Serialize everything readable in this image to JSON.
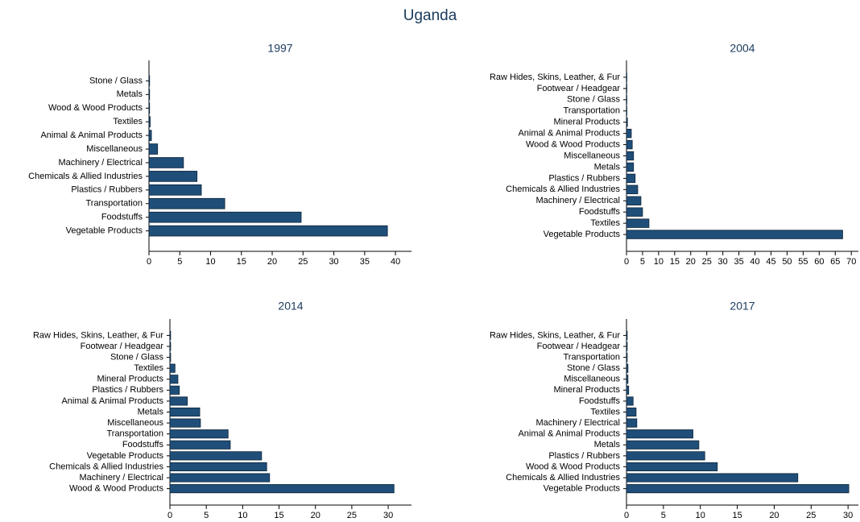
{
  "title": "Uganda",
  "chart_data": [
    {
      "type": "barh",
      "title": "1997",
      "color": "#1f4e79",
      "categories": [
        "Stone / Glass",
        "Metals",
        "Wood & Wood Products",
        "Textiles",
        "Animal & Animal Products",
        "Miscellaneous",
        "Machinery / Electrical",
        "Chemicals & Allied Industries",
        "Plastics / Rubbers",
        "Transportation",
        "Foodstuffs",
        "Vegetable Products"
      ],
      "values": [
        0.1,
        0.1,
        0.1,
        0.2,
        0.4,
        1.4,
        5.6,
        7.8,
        8.5,
        12.3,
        24.7,
        38.7
      ],
      "xlim": [
        0,
        42.6
      ],
      "xticks": [
        0,
        5,
        10,
        15,
        20,
        25,
        30,
        35,
        40
      ]
    },
    {
      "type": "barh",
      "title": "2004",
      "color": "#1f4e79",
      "categories": [
        "Raw Hides, Skins, Leather, & Fur",
        "Footwear / Headgear",
        "Stone / Glass",
        "Transportation",
        "Mineral Products",
        "Animal & Animal Products",
        "Wood & Wood Products",
        "Miscellaneous",
        "Metals",
        "Plastics / Rubbers",
        "Chemicals & Allied Industries",
        "Machinery / Electrical",
        "Foodstuffs",
        "Textiles",
        "Vegetable Products"
      ],
      "values": [
        0.1,
        0.1,
        0.1,
        0.1,
        0.3,
        1.5,
        1.8,
        2.2,
        2.2,
        2.7,
        3.5,
        4.5,
        5.0,
        7.0,
        67.3
      ],
      "xlim": [
        0,
        72.2
      ],
      "xticks": [
        0,
        5,
        10,
        15,
        20,
        25,
        30,
        35,
        40,
        45,
        50,
        55,
        60,
        65,
        70
      ]
    },
    {
      "type": "barh",
      "title": "2014",
      "color": "#1f4e79",
      "categories": [
        "Raw Hides, Skins, Leather, & Fur",
        "Footwear / Headgear",
        "Stone / Glass",
        "Textiles",
        "Mineral Products",
        "Plastics / Rubbers",
        "Animal & Animal Products",
        "Metals",
        "Miscellaneous",
        "Transportation",
        "Foodstuffs",
        "Vegetable Products",
        "Chemicals & Allied Industries",
        "Machinery / Electrical",
        "Wood & Wood Products"
      ],
      "values": [
        0.1,
        0.1,
        0.1,
        0.7,
        1.1,
        1.3,
        2.4,
        4.1,
        4.2,
        8.0,
        8.3,
        12.6,
        13.3,
        13.7,
        30.8
      ],
      "xlim": [
        0,
        33.2
      ],
      "xticks": [
        0,
        5,
        10,
        15,
        20,
        25,
        30
      ]
    },
    {
      "type": "barh",
      "title": "2017",
      "color": "#1f4e79",
      "categories": [
        "Raw Hides, Skins, Leather, & Fur",
        "Footwear / Headgear",
        "Transportation",
        "Stone / Glass",
        "Miscellaneous",
        "Mineral Products",
        "Foodstuffs",
        "Textiles",
        "Machinery / Electrical",
        "Animal & Animal Products",
        "Metals",
        "Plastics / Rubbers",
        "Wood & Wood Products",
        "Chemicals & Allied Industries",
        "Vegetable Products"
      ],
      "values": [
        0.1,
        0.1,
        0.1,
        0.2,
        0.2,
        0.3,
        0.9,
        1.3,
        1.4,
        9.0,
        9.8,
        10.6,
        12.3,
        23.2,
        30.1
      ],
      "xlim": [
        0,
        31.4
      ],
      "xticks": [
        0,
        5,
        10,
        15,
        20,
        25,
        30
      ]
    }
  ]
}
